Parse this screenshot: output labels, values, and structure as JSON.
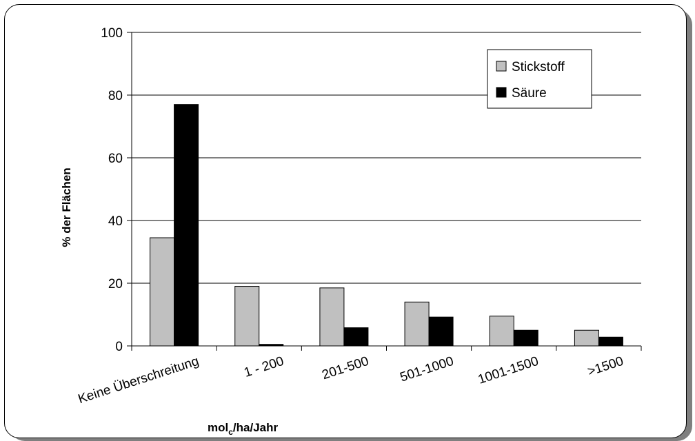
{
  "chart_data": {
    "type": "bar",
    "categories": [
      "Keine Überschreitung",
      "1 - 200",
      "201-500",
      "501-1000",
      "1001-1500",
      ">1500"
    ],
    "series": [
      {
        "name": "Stickstoff",
        "values": [
          34.5,
          19,
          18.5,
          14,
          9.5,
          5
        ],
        "color": "#c0c0c0"
      },
      {
        "name": "Säure",
        "values": [
          77,
          0.5,
          5.8,
          9.2,
          5,
          2.8
        ],
        "color": "#000000"
      }
    ],
    "ylim": [
      0,
      100
    ],
    "yticks": [
      0,
      20,
      40,
      60,
      80,
      100
    ],
    "ylabel": "% der Flächen",
    "xlabel_main": "mol",
    "xlabel_sub": "c",
    "xlabel_tail": "/ha/Jahr",
    "grid": true,
    "legend": "top-right"
  }
}
